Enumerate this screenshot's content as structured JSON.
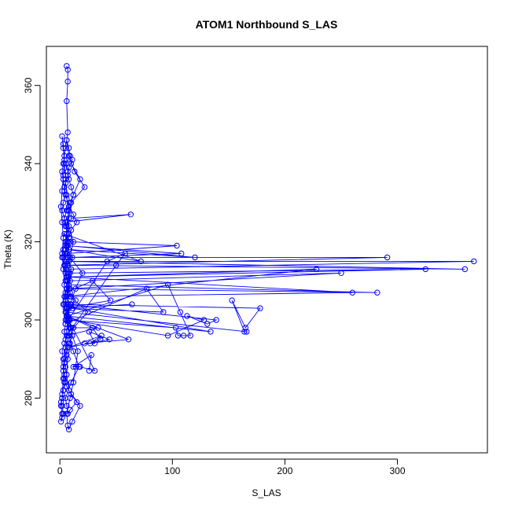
{
  "chart_data": {
    "type": "line",
    "title": "ATOM1 Northbound S_LAS",
    "xlabel": "S_LAS",
    "ylabel": "Theta (K)",
    "xlim": [
      -12,
      380
    ],
    "ylim": [
      266,
      370
    ],
    "xticks": [
      0,
      100,
      200,
      300
    ],
    "yticks": [
      280,
      300,
      320,
      340,
      360
    ],
    "grid": false,
    "color": "#0000ff",
    "series": [
      {
        "x": [
          6,
          7,
          7,
          6,
          7,
          6,
          5,
          4,
          3,
          2,
          3,
          4,
          5,
          3,
          2,
          4,
          6,
          8,
          5,
          3,
          2,
          4,
          7,
          9,
          6,
          4,
          3,
          5,
          8,
          10,
          7,
          4,
          2,
          3,
          5,
          6,
          4,
          3,
          2,
          1,
          2,
          3,
          2,
          1,
          2,
          1,
          2,
          3,
          5,
          4,
          3,
          4,
          6,
          8,
          11,
          9,
          6,
          5,
          4,
          6,
          8,
          7,
          5,
          4,
          3,
          5,
          6,
          8,
          5,
          4,
          6,
          9,
          12,
          10,
          8,
          7,
          6,
          9,
          11,
          8,
          7,
          5,
          4,
          6,
          8,
          12,
          15,
          10,
          8,
          6,
          5,
          8,
          10,
          7,
          6,
          9,
          14,
          8,
          6,
          5,
          4,
          5,
          7,
          6,
          4,
          3,
          4,
          6,
          10,
          15,
          9,
          7,
          6,
          5,
          10,
          17,
          12,
          8,
          7,
          9,
          14,
          20,
          9,
          7,
          6,
          8,
          12,
          18,
          10,
          8,
          6,
          8,
          13,
          22,
          10,
          8,
          6,
          5,
          4,
          5,
          9,
          25,
          12,
          9,
          7,
          6,
          8,
          18,
          11,
          8,
          7,
          6,
          9,
          12,
          14,
          16,
          11,
          8,
          7,
          6,
          8,
          9,
          12,
          8,
          7,
          6,
          5,
          4,
          3,
          2,
          3,
          4,
          3,
          2,
          1,
          2,
          3,
          2,
          3,
          4,
          5,
          7,
          6,
          5,
          4,
          3,
          2
        ],
        "y": [
          365,
          364,
          361,
          356,
          348,
          346,
          344,
          342,
          340,
          338,
          336,
          334,
          332,
          330,
          328,
          326,
          324,
          322,
          320,
          318,
          316,
          314,
          312,
          310,
          308,
          306,
          304,
          302,
          300,
          298,
          296,
          294,
          292,
          290,
          288,
          286,
          284,
          282,
          280,
          279,
          278,
          276,
          275,
          274,
          276,
          278,
          280,
          282,
          284,
          286,
          288,
          290,
          292,
          294,
          296,
          298,
          300,
          302,
          304,
          306,
          308,
          310,
          312,
          314,
          316,
          318,
          320,
          322,
          324,
          326,
          328,
          330,
          332,
          334,
          336,
          338,
          340,
          342,
          341,
          339,
          337,
          335,
          333,
          331,
          329,
          327,
          325,
          323,
          321,
          319,
          317,
          315,
          313,
          311,
          309,
          307,
          305,
          303,
          301,
          299,
          297,
          295,
          293,
          291,
          289,
          287,
          285,
          283,
          281,
          279,
          277,
          276,
          278,
          280,
          284,
          288,
          292,
          296,
          300,
          304,
          308,
          312,
          316,
          320,
          324,
          328,
          332,
          336,
          340,
          344,
          346,
          342,
          338,
          334,
          330,
          326,
          322,
          318,
          314,
          310,
          306,
          302,
          298,
          294,
          290,
          286,
          282,
          278,
          274,
          272,
          273,
          276,
          280,
          284,
          288,
          292,
          296,
          300,
          304,
          308,
          312,
          316,
          320,
          324,
          328,
          332,
          336,
          340,
          344,
          347,
          345,
          341,
          337,
          333,
          329,
          325,
          321,
          317,
          313,
          309,
          305,
          301,
          297,
          293,
          289,
          285,
          281
        ]
      },
      {
        "x": [
          10,
          63,
          5,
          8,
          72,
          4,
          9,
          104,
          6,
          11,
          108,
          5,
          8,
          120,
          7,
          6,
          291,
          5,
          8,
          368,
          6,
          7,
          360,
          5,
          9,
          325,
          6,
          8,
          282,
          6,
          10,
          260,
          7,
          9,
          250,
          6,
          8,
          228,
          5,
          10,
          178,
          165,
          153,
          164,
          166,
          6,
          9,
          96,
          128,
          113,
          131,
          139,
          6,
          11,
          134,
          6,
          96,
          107,
          116,
          110,
          105,
          103,
          5,
          12,
          34,
          6,
          50,
          58,
          42,
          5,
          77,
          92,
          5,
          64,
          6,
          45,
          29,
          5,
          6,
          61,
          22,
          31,
          26,
          44,
          8,
          37,
          27,
          36,
          29,
          6,
          31,
          18,
          12,
          28,
          26
        ],
        "y": [
          326,
          327,
          325,
          318,
          315,
          322,
          320,
          319,
          317,
          316,
          317,
          319,
          318,
          316,
          319,
          316,
          316,
          314,
          315,
          315,
          313,
          314,
          313,
          315,
          312,
          313,
          311,
          309,
          307,
          308,
          306,
          307,
          311,
          308,
          312,
          310,
          311,
          313,
          306,
          304,
          303,
          298,
          305,
          297,
          297,
          302,
          300,
          296,
          300,
          301,
          299,
          300,
          304,
          303,
          297,
          301,
          309,
          302,
          296,
          296,
          296,
          298,
          300,
          298,
          298,
          296,
          314,
          317,
          315,
          299,
          308,
          302,
          303,
          304,
          303,
          305,
          310,
          307,
          301,
          295,
          294,
          294,
          297,
          295,
          293,
          296,
          294,
          295,
          298,
          301,
          287,
          288,
          288,
          291,
          287
        ]
      }
    ]
  }
}
